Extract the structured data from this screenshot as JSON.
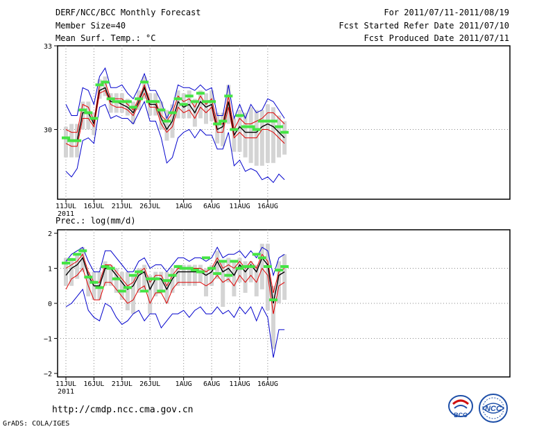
{
  "header": {
    "title": "DERF/NCC/BCC Monthly Forecast",
    "member_size": "Member Size=40",
    "variable": "Mean Surf. Temp.: °C",
    "forecast_period": "For 2011/07/11-2011/08/19",
    "fcst_started": "Fcst Started Refer Date 2011/07/10",
    "fcst_produced": "Fcst Produced Date 2011/07/11"
  },
  "footer": {
    "url": "http://cmdp.ncc.cma.gov.cn",
    "grads": "GrADS: COLA/IGES",
    "logo_bcc": "BCC",
    "logo_ncc": "NCC"
  },
  "colors": {
    "mean": "#000000",
    "spread": "#e00000",
    "extremes": "#0000cc",
    "bars": "#d4d4d4",
    "markers": "#44e444",
    "grid": "#888888"
  },
  "chart_data": [
    {
      "type": "line",
      "title": "Mean Surf. Temp.: °C",
      "x_tick_labels": [
        "11JUL",
        "16JUL",
        "21JUL",
        "26JUL",
        "1AUG",
        "6AUG",
        "11AUG",
        "16AUG"
      ],
      "x_year_label": "2011",
      "y_tick_labels": [
        "30",
        "33"
      ],
      "ylim": [
        27.5,
        33
      ],
      "days": 40,
      "series": [
        {
          "name": "ensemble max",
          "color": "#0000cc",
          "values": [
            30.9,
            30.5,
            30.5,
            31.5,
            31.4,
            30.9,
            31.9,
            32.2,
            31.5,
            31.5,
            31.6,
            31.3,
            31.1,
            31.5,
            32.0,
            31.4,
            31.4,
            31.0,
            30.4,
            30.8,
            31.6,
            31.5,
            31.5,
            31.4,
            31.6,
            31.4,
            31.5,
            30.5,
            30.5,
            31.6,
            30.4,
            30.9,
            30.4,
            30.9,
            30.6,
            30.7,
            31.1,
            31.0,
            30.7,
            30.4
          ]
        },
        {
          "name": "spread upper",
          "color": "#e00000",
          "values": [
            30.0,
            29.9,
            29.9,
            30.9,
            30.8,
            30.3,
            31.6,
            31.7,
            31.1,
            31.1,
            31.1,
            30.9,
            30.7,
            31.1,
            31.6,
            31.0,
            31.0,
            30.5,
            30.3,
            30.6,
            31.2,
            31.0,
            31.1,
            30.8,
            31.2,
            30.9,
            31.1,
            30.2,
            30.2,
            31.2,
            30.0,
            30.4,
            30.2,
            30.2,
            30.3,
            30.4,
            30.6,
            30.6,
            30.4,
            30.2
          ]
        },
        {
          "name": "ensemble mean",
          "color": "#000000",
          "values": [
            29.7,
            29.6,
            29.6,
            30.6,
            30.6,
            30.2,
            31.4,
            31.5,
            31.0,
            31.0,
            30.9,
            30.8,
            30.6,
            31.0,
            31.5,
            30.9,
            30.9,
            30.4,
            30.0,
            30.3,
            31.0,
            30.8,
            30.9,
            30.6,
            31.0,
            30.8,
            30.9,
            30.0,
            30.1,
            31.0,
            29.8,
            30.1,
            29.9,
            29.9,
            29.9,
            30.1,
            30.2,
            30.1,
            29.9,
            29.7
          ]
        },
        {
          "name": "spread lower",
          "color": "#e00000",
          "values": [
            29.5,
            29.4,
            29.4,
            30.4,
            30.4,
            30.1,
            31.3,
            31.4,
            30.9,
            30.8,
            30.8,
            30.7,
            30.5,
            30.9,
            31.3,
            30.8,
            30.8,
            30.2,
            29.9,
            30.1,
            30.8,
            30.6,
            30.7,
            30.4,
            30.8,
            30.6,
            30.8,
            29.9,
            29.9,
            30.8,
            29.7,
            29.9,
            29.7,
            29.7,
            29.7,
            30.0,
            30.0,
            29.9,
            29.7,
            29.5
          ]
        },
        {
          "name": "ensemble min",
          "color": "#0000cc",
          "values": [
            28.5,
            28.3,
            28.6,
            29.6,
            29.7,
            29.5,
            30.8,
            30.9,
            30.4,
            30.5,
            30.4,
            30.4,
            30.2,
            30.6,
            31.0,
            30.3,
            30.3,
            29.7,
            28.8,
            29.0,
            29.7,
            29.9,
            30.0,
            29.7,
            30.0,
            29.8,
            29.8,
            29.3,
            29.3,
            29.9,
            28.7,
            28.9,
            28.5,
            28.6,
            28.5,
            28.2,
            28.3,
            28.1,
            28.4,
            28.2
          ]
        }
      ],
      "bars_low": [
        29.0,
        29.0,
        29.0,
        30.0,
        30.0,
        29.8,
        31.1,
        31.2,
        30.6,
        30.6,
        30.6,
        30.5,
        30.2,
        30.7,
        31.1,
        30.5,
        30.5,
        30.0,
        29.6,
        29.7,
        30.4,
        30.4,
        30.4,
        30.1,
        30.4,
        30.2,
        30.3,
        29.5,
        29.4,
        30.2,
        29.2,
        29.2,
        29.0,
        28.8,
        28.7,
        28.7,
        28.8,
        28.8,
        29.0,
        29.1
      ],
      "bars_high": [
        30.1,
        30.2,
        30.2,
        31.0,
        31.0,
        30.6,
        31.8,
        31.9,
        31.3,
        31.3,
        31.3,
        31.1,
        31.0,
        31.4,
        31.9,
        31.3,
        31.3,
        31.0,
        30.7,
        30.9,
        31.4,
        31.3,
        31.4,
        31.1,
        31.4,
        31.3,
        31.4,
        30.6,
        30.6,
        31.6,
        30.4,
        30.7,
        30.6,
        30.8,
        30.7,
        30.7,
        30.9,
        30.8,
        30.5,
        30.3
      ],
      "markers": [
        29.7,
        29.6,
        29.6,
        30.7,
        30.6,
        30.4,
        31.6,
        31.7,
        31.1,
        31.0,
        31.0,
        31.0,
        30.8,
        31.1,
        31.7,
        31.0,
        31.0,
        30.7,
        30.3,
        30.6,
        31.1,
        30.9,
        31.2,
        31.0,
        31.3,
        31.0,
        31.0,
        30.2,
        30.3,
        31.2,
        30.0,
        30.5,
        30.1,
        30.1,
        30.0,
        30.3,
        30.3,
        30.3,
        30.1,
        29.9
      ]
    },
    {
      "type": "line",
      "title": "Prec.: log(mm/d)",
      "x_tick_labels": [
        "11JUL",
        "16JUL",
        "21JUL",
        "26JUL",
        "1AUG",
        "6AUG",
        "11AUG",
        "16AUG"
      ],
      "x_year_label": "2011",
      "y_tick_labels": [
        "−2",
        "−1",
        "0",
        "1",
        "2"
      ],
      "ylim": [
        -2.1,
        2.1
      ],
      "days": 40,
      "series": [
        {
          "name": "ensemble max",
          "color": "#0000cc",
          "values": [
            1.2,
            1.4,
            1.5,
            1.6,
            1.2,
            0.9,
            0.9,
            1.5,
            1.5,
            1.3,
            1.1,
            0.9,
            0.9,
            1.2,
            1.3,
            1.0,
            1.1,
            1.1,
            0.9,
            1.1,
            1.3,
            1.3,
            1.2,
            1.3,
            1.3,
            1.2,
            1.3,
            1.6,
            1.3,
            1.4,
            1.4,
            1.5,
            1.3,
            1.5,
            1.3,
            1.6,
            1.5,
            0.8,
            1.3,
            1.4
          ]
        },
        {
          "name": "spread upper",
          "color": "#e00000",
          "values": [
            1.0,
            1.1,
            1.2,
            1.4,
            0.9,
            0.6,
            0.6,
            1.1,
            1.1,
            0.9,
            0.7,
            0.5,
            0.6,
            0.9,
            1.0,
            0.6,
            0.8,
            0.8,
            0.5,
            0.8,
            1.0,
            1.0,
            1.0,
            1.0,
            1.0,
            0.9,
            1.0,
            1.3,
            1.0,
            1.1,
            1.0,
            1.2,
            1.0,
            1.2,
            1.0,
            1.4,
            1.2,
            0.3,
            0.9,
            1.0
          ]
        },
        {
          "name": "ensemble mean",
          "color": "#000000",
          "values": [
            0.8,
            1.0,
            1.1,
            1.3,
            0.8,
            0.5,
            0.5,
            1.0,
            1.0,
            0.8,
            0.6,
            0.4,
            0.5,
            0.8,
            0.9,
            0.4,
            0.7,
            0.7,
            0.4,
            0.7,
            0.9,
            0.9,
            0.9,
            0.9,
            0.9,
            0.8,
            0.9,
            1.2,
            0.9,
            1.0,
            0.8,
            1.1,
            0.9,
            1.1,
            0.9,
            1.3,
            1.1,
            0.0,
            0.8,
            0.9
          ]
        },
        {
          "name": "spread lower",
          "color": "#e00000",
          "values": [
            0.4,
            0.7,
            0.8,
            1.0,
            0.5,
            0.1,
            0.1,
            0.6,
            0.6,
            0.4,
            0.2,
            0.0,
            0.1,
            0.4,
            0.5,
            0.0,
            0.3,
            0.3,
            0.0,
            0.4,
            0.6,
            0.6,
            0.6,
            0.6,
            0.6,
            0.5,
            0.6,
            0.8,
            0.6,
            0.7,
            0.5,
            0.8,
            0.6,
            0.8,
            0.6,
            1.0,
            0.8,
            -0.3,
            0.5,
            0.6
          ]
        },
        {
          "name": "ensemble min",
          "color": "#0000cc",
          "values": [
            -0.1,
            0.0,
            0.2,
            0.4,
            -0.2,
            -0.4,
            -0.5,
            0.0,
            -0.1,
            -0.4,
            -0.6,
            -0.5,
            -0.3,
            -0.2,
            -0.5,
            -0.3,
            -0.3,
            -0.7,
            -0.5,
            -0.3,
            -0.3,
            -0.2,
            -0.4,
            -0.2,
            -0.1,
            -0.3,
            -0.3,
            -0.1,
            -0.3,
            -0.2,
            -0.4,
            -0.1,
            -0.3,
            -0.1,
            -0.5,
            -0.1,
            -0.4,
            -1.55,
            -0.75,
            -0.75
          ]
        }
      ],
      "bars_low": [
        0.5,
        0.5,
        0.7,
        0.9,
        0.2,
        0.1,
        0.1,
        0.5,
        0.5,
        0.3,
        0.1,
        -0.2,
        -0.3,
        0.3,
        0.4,
        -0.3,
        0.2,
        0.3,
        0.0,
        0.3,
        0.5,
        0.5,
        0.5,
        0.5,
        0.6,
        0.2,
        0.5,
        0.7,
        -0.1,
        0.6,
        0.2,
        0.6,
        0.3,
        0.6,
        0.2,
        0.4,
        -0.2,
        -1.3,
        0.0,
        0.1
      ],
      "bars_high": [
        1.3,
        1.3,
        1.4,
        1.6,
        0.9,
        0.9,
        0.9,
        1.2,
        1.1,
        1.0,
        0.9,
        0.9,
        0.8,
        1.0,
        1.1,
        0.8,
        0.9,
        0.9,
        0.9,
        1.0,
        1.1,
        1.1,
        1.1,
        1.1,
        1.1,
        1.0,
        1.1,
        1.5,
        1.2,
        1.3,
        1.2,
        1.3,
        1.2,
        1.2,
        1.1,
        1.7,
        1.7,
        0.5,
        1.2,
        1.4
      ],
      "markers": [
        1.15,
        1.25,
        1.4,
        1.5,
        0.75,
        0.6,
        0.45,
        1.05,
        1.0,
        0.7,
        0.35,
        0.45,
        0.8,
        0.9,
        0.35,
        0.7,
        0.7,
        0.35,
        0.65,
        0.8,
        1.05,
        1.0,
        1.0,
        0.95,
        0.9,
        1.3,
        1.0,
        0.85,
        1.2,
        0.8,
        1.2,
        1.0,
        1.05,
        1.05,
        1.4,
        1.3,
        1.05,
        0.1,
        0.95,
        1.05
      ]
    }
  ]
}
